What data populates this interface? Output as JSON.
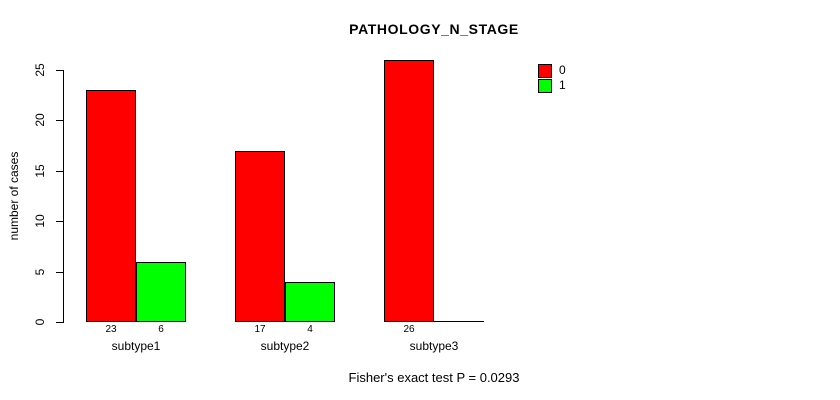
{
  "chart_data": {
    "type": "bar",
    "title": "PATHOLOGY_N_STAGE",
    "categories": [
      "subtype1",
      "subtype2",
      "subtype3"
    ],
    "series": [
      {
        "name": "0",
        "color": "#ff0000",
        "values": [
          23,
          17,
          26
        ]
      },
      {
        "name": "1",
        "color": "#00ff00",
        "values": [
          6,
          4,
          0
        ]
      }
    ],
    "bar_value_labels": [
      [
        "23",
        "6"
      ],
      [
        "17",
        "4"
      ],
      [
        "26",
        ""
      ]
    ],
    "ylabel": "number of cases",
    "xlabel": "",
    "ylim": [
      0,
      25
    ],
    "yticks": [
      0,
      5,
      10,
      15,
      20,
      25
    ],
    "grid": false,
    "legend_position": "top-right",
    "legend_entries": [
      "0",
      "1"
    ],
    "annotation": "Fisher's exact test P = 0.0293",
    "background": "#ffffff",
    "axis_color": "#000000"
  }
}
